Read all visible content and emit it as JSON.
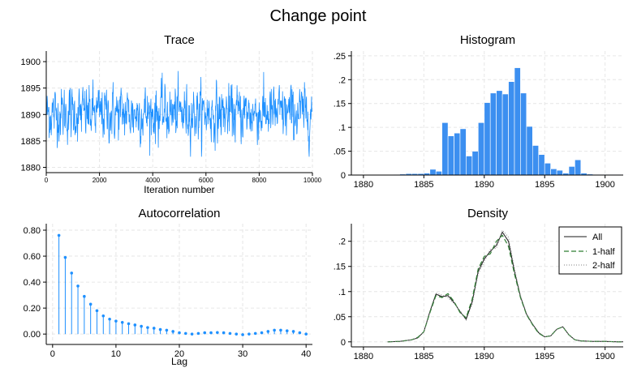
{
  "figure": {
    "title": "Change point"
  },
  "colors": {
    "accent": "#1e90ff",
    "bar_fill": "#3c8ff0",
    "density_dash": "#2e7d32",
    "density_dot": "#808080",
    "grid": "#e6e6e6"
  },
  "chart_data": [
    {
      "id": "trace",
      "type": "line",
      "title": "Trace",
      "xlabel": "Iteration number",
      "ylabel": "",
      "xlim": [
        0,
        10000
      ],
      "ylim": [
        1879,
        1902
      ],
      "xticks": [
        0,
        2000,
        4000,
        6000,
        8000,
        10000
      ],
      "yticks": [
        1880,
        1885,
        1890,
        1895,
        1900
      ],
      "n_iterations": 10000,
      "center": 1890.2,
      "spread": 2.6,
      "range": [
        1882,
        1901
      ]
    },
    {
      "id": "histogram",
      "type": "bar",
      "title": "Histogram",
      "xlabel": "",
      "ylabel": "",
      "xlim": [
        1879,
        1901.5
      ],
      "ylim": [
        0,
        0.26
      ],
      "xticks": [
        1880,
        1885,
        1890,
        1895,
        1900
      ],
      "yticks": [
        0,
        0.05,
        0.1,
        0.15,
        0.2,
        0.25
      ],
      "ytick_labels": [
        "0",
        ".05",
        ".1",
        ".15",
        ".2",
        ".25"
      ],
      "bin_start": 1882.5,
      "bin_width": 0.5,
      "values": [
        0.001,
        0.002,
        0.003,
        0.003,
        0.003,
        0.004,
        0.012,
        0.008,
        0.11,
        0.082,
        0.088,
        0.097,
        0.04,
        0.05,
        0.11,
        0.152,
        0.172,
        0.177,
        0.17,
        0.196,
        0.225,
        0.172,
        0.102,
        0.062,
        0.043,
        0.025,
        0.013,
        0.01,
        0.004,
        0.018,
        0.032,
        0.004,
        0.002,
        0.001,
        0.001,
        0.001,
        0.001,
        0.001,
        0.001
      ]
    },
    {
      "id": "autocorrelation",
      "type": "scatter",
      "title": "Autocorrelation",
      "xlabel": "Lag",
      "ylabel": "",
      "xlim": [
        -1,
        41
      ],
      "ylim": [
        -0.08,
        0.85
      ],
      "xticks": [
        0,
        10,
        20,
        30,
        40
      ],
      "yticks": [
        0,
        0.2,
        0.4,
        0.6,
        0.8
      ],
      "ytick_labels": [
        "0.00",
        "0.20",
        "0.40",
        "0.60",
        "0.80"
      ],
      "lags": [
        1,
        2,
        3,
        4,
        5,
        6,
        7,
        8,
        9,
        10,
        11,
        12,
        13,
        14,
        15,
        16,
        17,
        18,
        19,
        20,
        21,
        22,
        23,
        24,
        25,
        26,
        27,
        28,
        29,
        30,
        31,
        32,
        33,
        34,
        35,
        36,
        37,
        38,
        39,
        40
      ],
      "values": [
        0.76,
        0.59,
        0.47,
        0.37,
        0.29,
        0.23,
        0.18,
        0.14,
        0.115,
        0.1,
        0.09,
        0.08,
        0.07,
        0.06,
        0.05,
        0.045,
        0.035,
        0.03,
        0.02,
        0.01,
        0.005,
        0.0,
        0.005,
        0.01,
        0.01,
        0.012,
        0.01,
        0.005,
        0.0,
        -0.005,
        0.0,
        0.005,
        0.01,
        0.02,
        0.03,
        0.03,
        0.025,
        0.02,
        0.01,
        0.0
      ]
    },
    {
      "id": "density",
      "type": "line",
      "title": "Density",
      "xlabel": "",
      "ylabel": "",
      "xlim": [
        1879,
        1901.5
      ],
      "ylim": [
        -0.01,
        0.235
      ],
      "xticks": [
        1880,
        1885,
        1890,
        1895,
        1900
      ],
      "yticks": [
        0,
        0.05,
        0.1,
        0.15,
        0.2
      ],
      "ytick_labels": [
        "0",
        ".05",
        ".1",
        ".15",
        ".2"
      ],
      "legend_position": "top-right",
      "x": [
        1882,
        1883,
        1884,
        1884.5,
        1885,
        1885.5,
        1886,
        1886.5,
        1887,
        1887.5,
        1888,
        1888.5,
        1889,
        1889.5,
        1890,
        1890.5,
        1891,
        1891.5,
        1892,
        1892.5,
        1893,
        1893.5,
        1894,
        1894.5,
        1895,
        1895.5,
        1896,
        1896.5,
        1897,
        1897.5,
        1898,
        1899,
        1900,
        1901,
        1901.5
      ],
      "series": [
        {
          "name": "All",
          "style": "solid",
          "values": [
            0,
            0.001,
            0.004,
            0.008,
            0.02,
            0.06,
            0.095,
            0.09,
            0.092,
            0.078,
            0.06,
            0.045,
            0.08,
            0.14,
            0.165,
            0.18,
            0.192,
            0.218,
            0.2,
            0.14,
            0.09,
            0.055,
            0.035,
            0.018,
            0.01,
            0.012,
            0.025,
            0.03,
            0.014,
            0.004,
            0.002,
            0.001,
            0.001,
            0,
            0
          ]
        },
        {
          "name": "1-half",
          "style": "dashed",
          "values": [
            0,
            0.001,
            0.004,
            0.009,
            0.02,
            0.058,
            0.092,
            0.088,
            0.096,
            0.08,
            0.058,
            0.048,
            0.085,
            0.145,
            0.17,
            0.175,
            0.2,
            0.212,
            0.19,
            0.135,
            0.088,
            0.054,
            0.034,
            0.017,
            0.01,
            0.012,
            0.025,
            0.03,
            0.014,
            0.004,
            0.002,
            0.001,
            0.001,
            0,
            0
          ]
        },
        {
          "name": "2-half",
          "style": "dotted",
          "values": [
            0,
            0.001,
            0.004,
            0.007,
            0.02,
            0.062,
            0.097,
            0.093,
            0.088,
            0.076,
            0.062,
            0.043,
            0.075,
            0.135,
            0.16,
            0.184,
            0.186,
            0.222,
            0.208,
            0.145,
            0.092,
            0.056,
            0.036,
            0.019,
            0.01,
            0.012,
            0.025,
            0.03,
            0.014,
            0.004,
            0.002,
            0.001,
            0.001,
            0,
            0
          ]
        }
      ]
    }
  ]
}
